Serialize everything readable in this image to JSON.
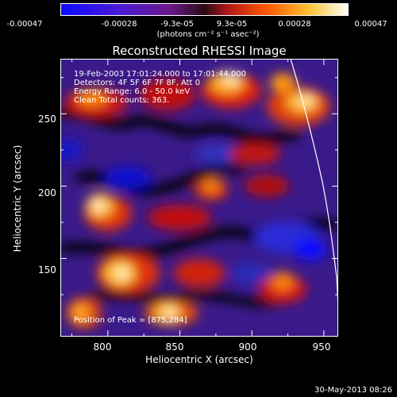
{
  "colorbar": {
    "ticks": [
      "-0.00047",
      "-0.00028",
      "-9.3e-05",
      "9.3e-05",
      "0.00028",
      "0.00047"
    ],
    "values": [
      -0.00047,
      -0.00028,
      -9.3e-05,
      9.3e-05,
      0.00028,
      0.00047
    ],
    "unit_label": "(photons cm⁻² s⁻¹ asec⁻²)",
    "colors": [
      "#0a0aff",
      "#7a0acc",
      "#d8102a",
      "#ff6a00",
      "#ffe36a",
      "#ffffff"
    ]
  },
  "plot": {
    "title": "Reconstructed RHESSI Image",
    "xlabel": "Heliocentric X (arcsec)",
    "ylabel": "Heliocentric Y (arcsec)",
    "x_ticks": [
      "800",
      "850",
      "900",
      "950"
    ],
    "y_ticks": [
      "150",
      "200",
      "250"
    ],
    "x_tick_values": [
      800,
      850,
      900,
      950
    ],
    "y_tick_values": [
      150,
      200,
      250
    ],
    "xlim": [
      767,
      960
    ],
    "ylim": [
      96,
      288
    ]
  },
  "info": {
    "lines": [
      "19-Feb-2003 17:01:24.000 to 17:01:44.000",
      "Detectors: 4F 5F 6F 7F 8F, Att 0",
      "Energy Range: 6.0 - 50.0 keV",
      "Clean    Total counts: 363."
    ],
    "peak": "Position of Peak = [875,284]"
  },
  "timestamp": "30-May-2013 08:26"
}
